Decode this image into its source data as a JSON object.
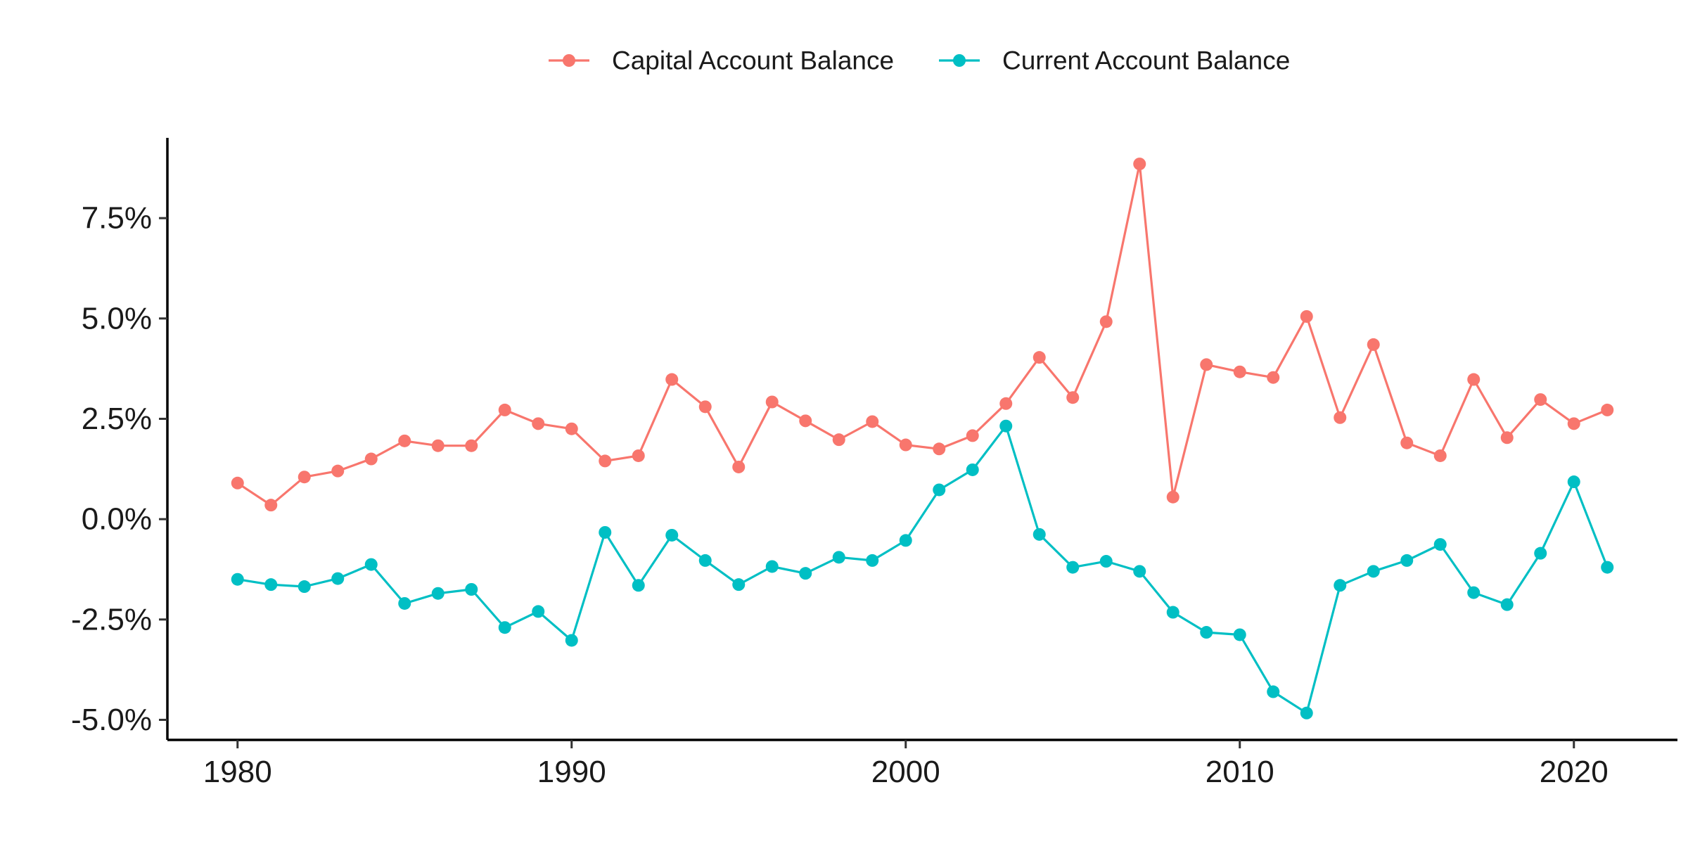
{
  "chart_data": {
    "type": "line",
    "title": "",
    "xlabel": "",
    "ylabel": "",
    "x": [
      1980,
      1981,
      1982,
      1983,
      1984,
      1985,
      1986,
      1987,
      1988,
      1989,
      1990,
      1991,
      1992,
      1993,
      1994,
      1995,
      1996,
      1997,
      1998,
      1999,
      2000,
      2001,
      2002,
      2003,
      2004,
      2005,
      2006,
      2007,
      2008,
      2009,
      2010,
      2011,
      2012,
      2013,
      2014,
      2015,
      2016,
      2017,
      2018,
      2019,
      2020,
      2021
    ],
    "xlim": [
      1977.9,
      2023.1
    ],
    "ylim": [
      -5.5,
      9.5
    ],
    "x_ticks": [
      1980,
      1990,
      2000,
      2010,
      2020
    ],
    "x_tick_labels": [
      "1980",
      "1990",
      "2000",
      "2010",
      "2020"
    ],
    "y_ticks": [
      -5.0,
      -2.5,
      0.0,
      2.5,
      5.0,
      7.5
    ],
    "y_tick_labels": [
      "-5.0%",
      "-2.5%",
      "0.0%",
      "2.5%",
      "5.0%",
      "7.5%"
    ],
    "grid": false,
    "legend_position": "top",
    "series": [
      {
        "name": "Capital Account Balance",
        "color": "#F8766D",
        "values": [
          0.9,
          0.35,
          1.05,
          1.2,
          1.5,
          1.95,
          1.83,
          1.83,
          2.72,
          2.38,
          2.25,
          1.45,
          1.58,
          3.48,
          2.8,
          1.3,
          2.92,
          2.45,
          1.98,
          2.43,
          1.85,
          1.75,
          2.08,
          2.88,
          4.03,
          3.03,
          4.92,
          8.85,
          0.55,
          3.85,
          3.67,
          3.53,
          5.05,
          2.53,
          4.35,
          1.9,
          1.58,
          3.48,
          2.03,
          2.98,
          2.38,
          2.72
        ]
      },
      {
        "name": "Current Account Balance",
        "color": "#00BFC4",
        "values": [
          -1.5,
          -1.63,
          -1.68,
          -1.48,
          -1.13,
          -2.1,
          -1.85,
          -1.75,
          -2.7,
          -2.3,
          -3.02,
          -0.33,
          -1.65,
          -0.4,
          -1.03,
          -1.63,
          -1.18,
          -1.35,
          -0.95,
          -1.03,
          -0.53,
          0.73,
          1.23,
          2.32,
          -0.38,
          -1.2,
          -1.05,
          -1.3,
          -2.32,
          -2.82,
          -2.88,
          -4.3,
          -4.83,
          -1.65,
          -1.3,
          -1.03,
          -0.63,
          -1.83,
          -2.13,
          -0.85,
          0.93,
          -1.2
        ]
      }
    ]
  }
}
